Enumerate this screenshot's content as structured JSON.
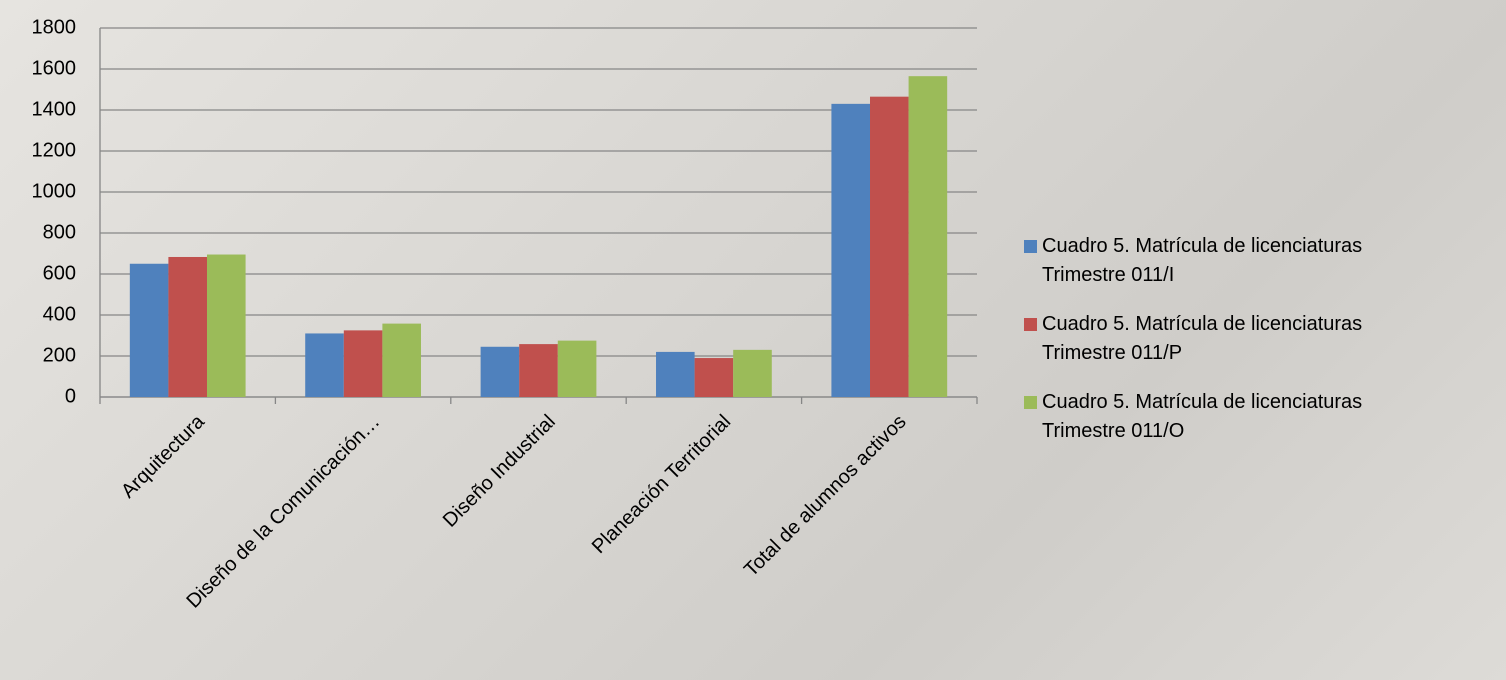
{
  "chart_data": {
    "type": "bar",
    "categories": [
      "Arquitectura",
      "Diseño de la Comunicación…",
      "Diseño Industrial",
      "Planeación Territorial",
      "Total de alumnos activos"
    ],
    "series": [
      {
        "name": "Cuadro 5. Matrícula de licenciaturas Trimestre 011/I",
        "color": "#4f81bd",
        "values": [
          650,
          310,
          245,
          220,
          1430
        ]
      },
      {
        "name": "Cuadro 5. Matrícula de licenciaturas Trimestre 011/P",
        "color": "#c0504d",
        "values": [
          683,
          325,
          258,
          190,
          1465
        ]
      },
      {
        "name": "Cuadro 5. Matrícula de licenciaturas Trimestre 011/O",
        "color": "#9bbb59",
        "values": [
          695,
          358,
          275,
          230,
          1565
        ]
      }
    ],
    "ylim": [
      0,
      1800
    ],
    "yticks": [
      0,
      200,
      400,
      600,
      800,
      1000,
      1200,
      1400,
      1600,
      1800
    ],
    "grid": true,
    "legend": "right"
  }
}
